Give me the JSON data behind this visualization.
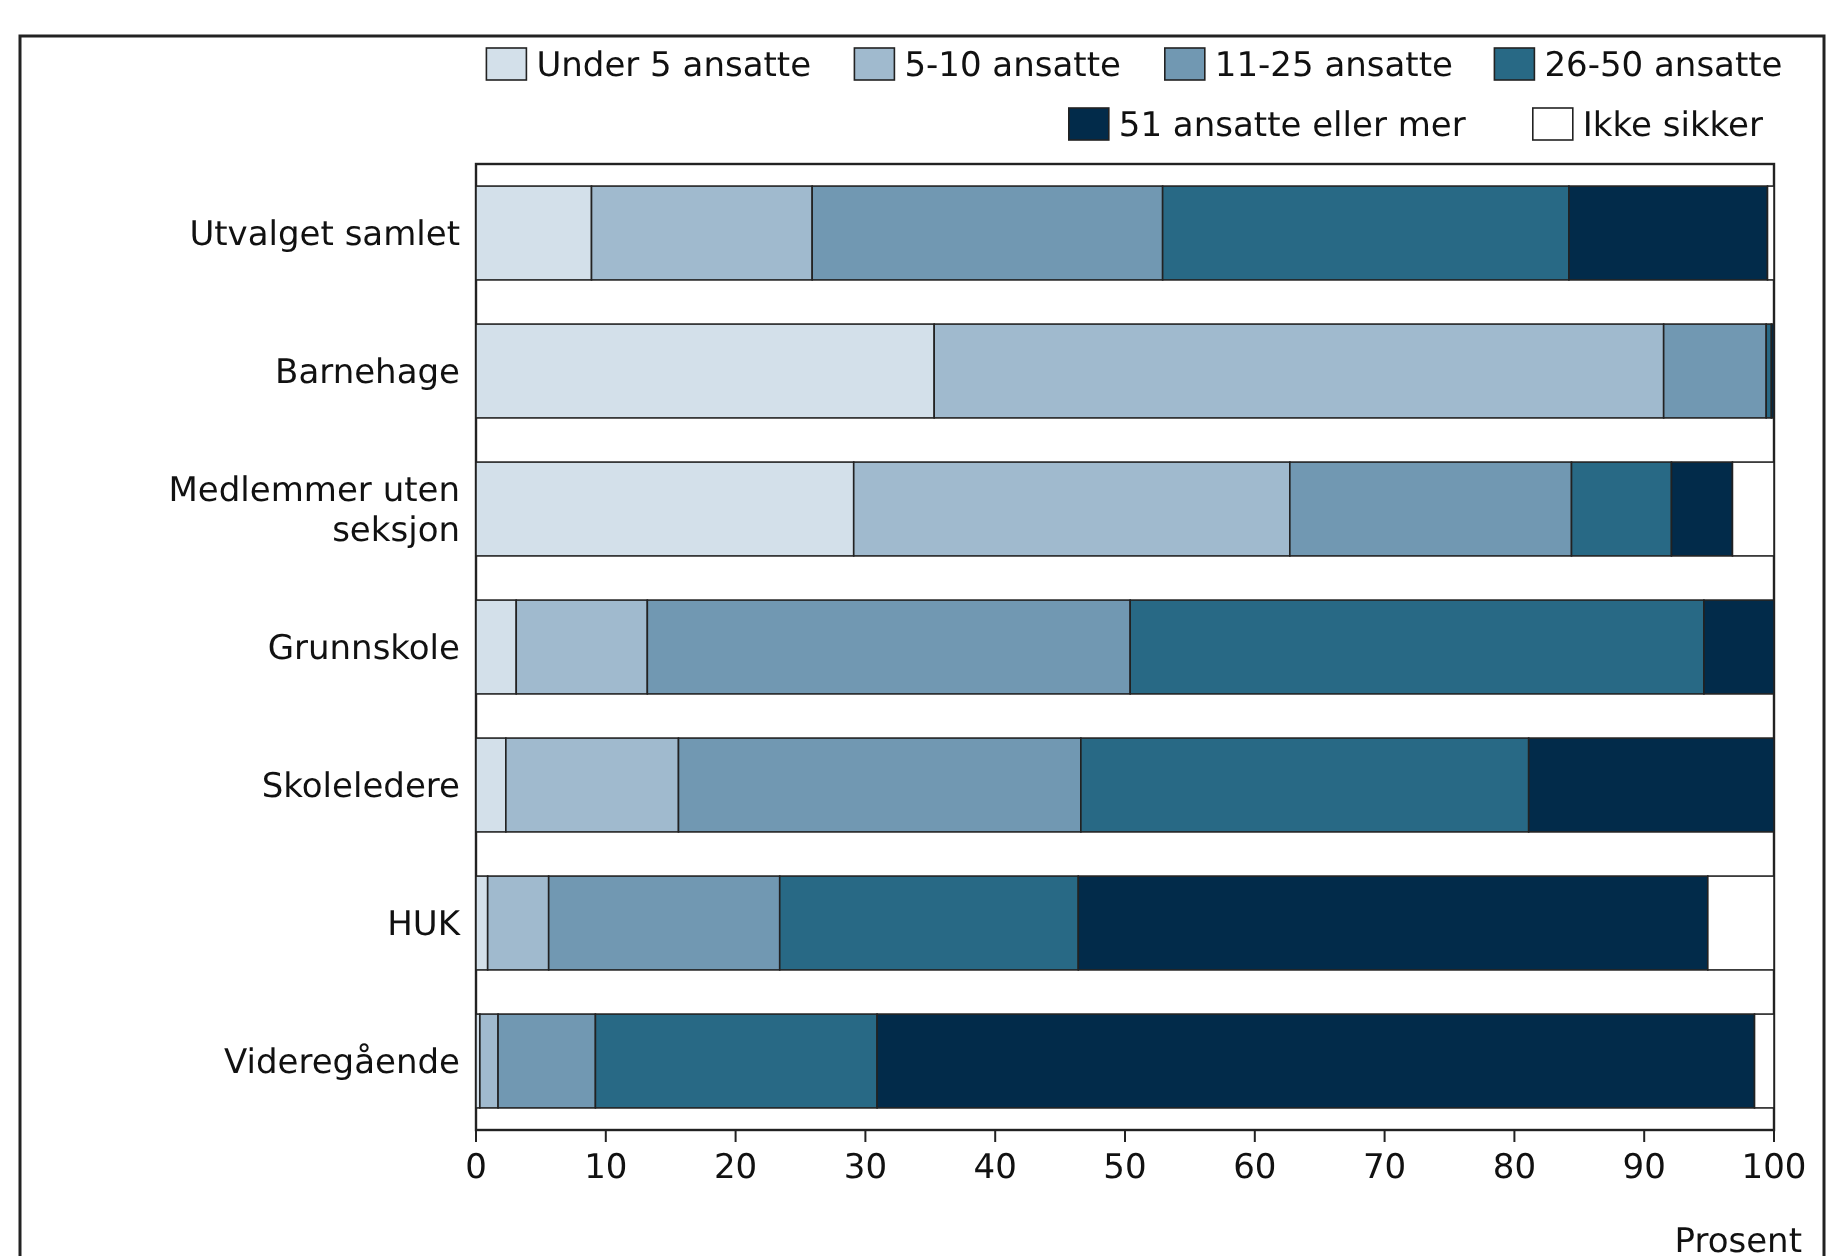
{
  "chart_data": {
    "type": "bar",
    "orientation": "horizontal",
    "stacked": true,
    "xlabel": "Prosent",
    "legend": "top right",
    "categories": [
      "Utvalget samlet",
      "Barnehage",
      "Medlemmer uten seksjon",
      "Grunnskole",
      "Skoleledere",
      "HUK",
      "Videregående"
    ],
    "xlim": [
      0,
      100
    ],
    "xticks": [
      0,
      10,
      20,
      30,
      40,
      50,
      60,
      70,
      80,
      90,
      100
    ],
    "series": [
      {
        "name": "Under 5 ansatte",
        "color": "#d3e0ea",
        "values": [
          8.9,
          35.3,
          29.1,
          3.1,
          2.3,
          0.9,
          0.3
        ]
      },
      {
        "name": "5-10 ansatte",
        "color": "#a0bace",
        "values": [
          17.0,
          56.2,
          33.6,
          10.1,
          13.3,
          4.7,
          1.4
        ]
      },
      {
        "name": "11-25 ansatte",
        "color": "#7198b2",
        "values": [
          27.0,
          7.9,
          21.7,
          37.2,
          31.0,
          17.8,
          7.5
        ]
      },
      {
        "name": "26-50 ansatte",
        "color": "#286985",
        "values": [
          31.3,
          0.4,
          7.7,
          44.2,
          34.5,
          23.0,
          21.7
        ]
      },
      {
        "name": "51 ansatte eller mer",
        "color": "#022b4a",
        "values": [
          15.3,
          0.2,
          4.7,
          5.4,
          18.9,
          48.5,
          67.6
        ]
      },
      {
        "name": "Ikke sikker",
        "color": "#ffffff",
        "values": [
          0.5,
          0,
          3.2,
          0,
          0,
          5.1,
          1.5
        ]
      }
    ]
  }
}
